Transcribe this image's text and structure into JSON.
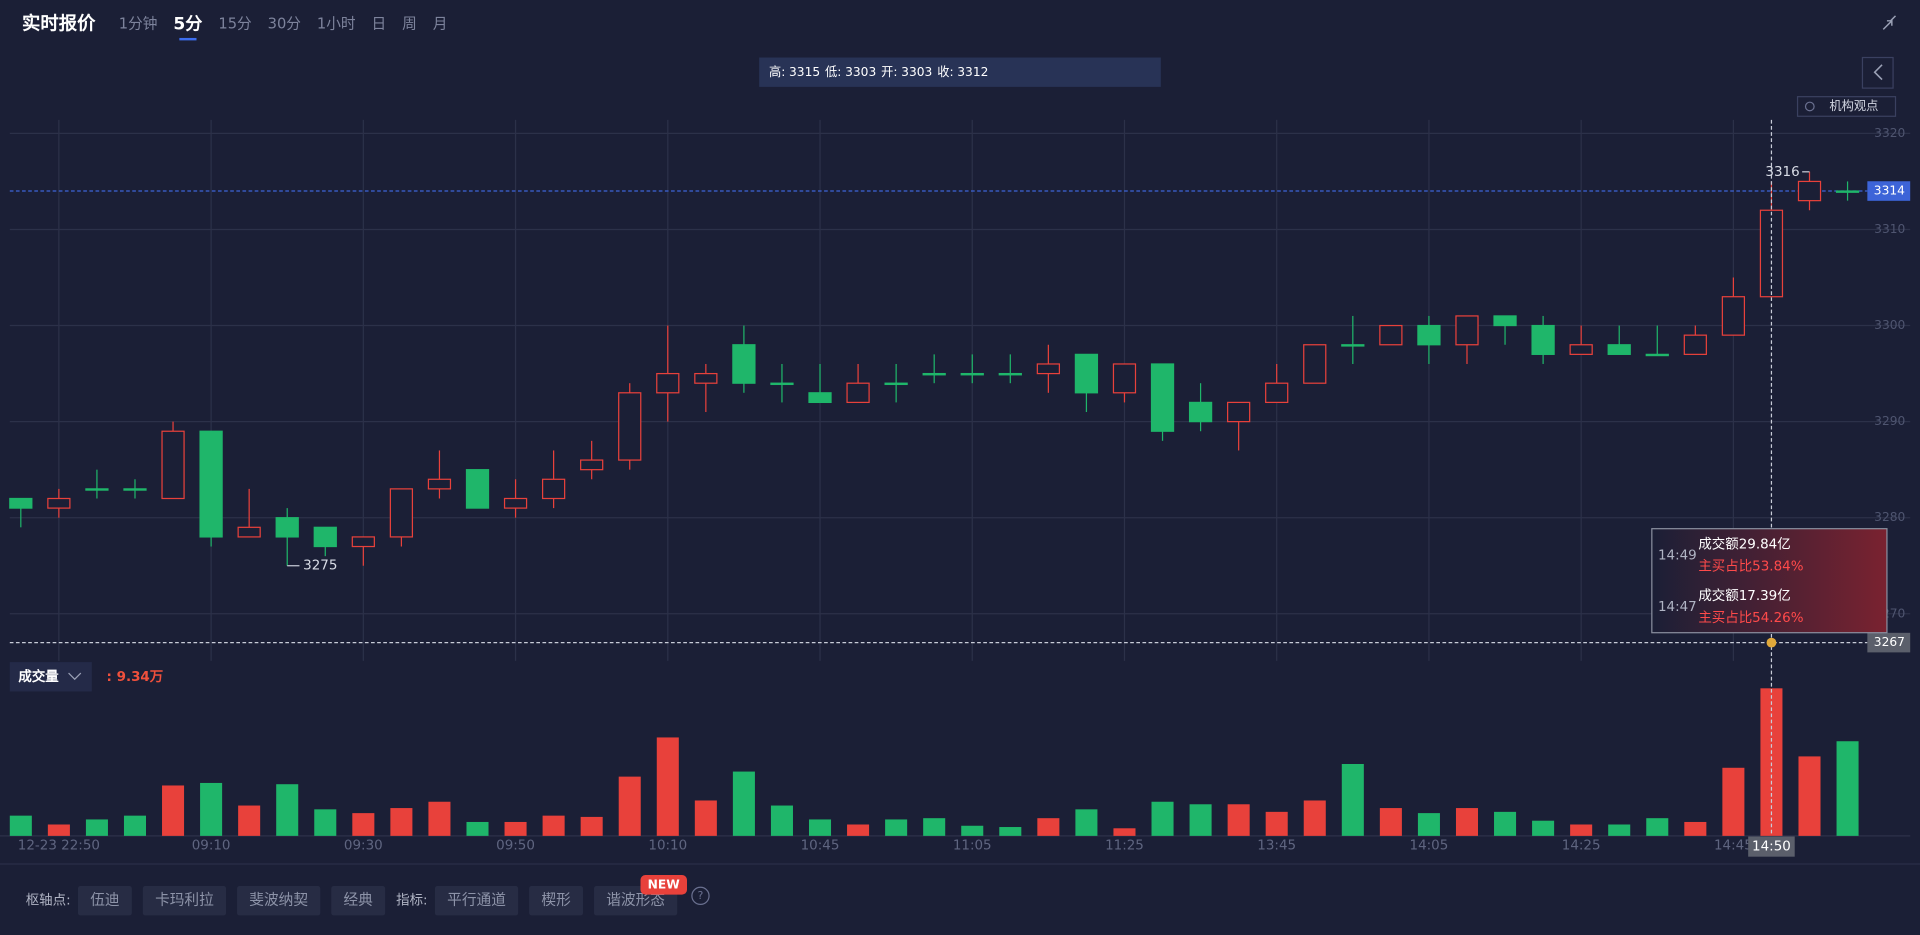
{
  "header": {
    "title": "实时报价",
    "periods": [
      "1分钟",
      "5分",
      "15分",
      "30分",
      "1小时",
      "日",
      "周",
      "月"
    ],
    "active_period": 1,
    "opinion_button": "机构观点"
  },
  "chart_data": {
    "type": "candlestick",
    "categories": [
      null,
      "12-23 22:50",
      null,
      null,
      null,
      "09:10",
      null,
      null,
      null,
      "09:30",
      null,
      null,
      null,
      "09:50",
      null,
      null,
      null,
      "10:10",
      null,
      null,
      null,
      "10:45",
      null,
      null,
      null,
      "11:05",
      null,
      null,
      null,
      "11:25",
      null,
      null,
      null,
      "13:45",
      null,
      null,
      null,
      "14:05",
      null,
      null,
      null,
      "14:25",
      null,
      null,
      null,
      "14:45",
      "14:50",
      null,
      null
    ],
    "open": [
      3282,
      3281,
      3283,
      3283,
      3282,
      3289,
      3278,
      3280,
      3279,
      3277,
      3278,
      3283,
      3285,
      3281,
      3282,
      3285,
      3286,
      3293,
      3294,
      3298,
      3294,
      3293,
      3292,
      3294,
      3295,
      3295,
      3295,
      3295,
      3297,
      3293,
      3296,
      3292,
      3290,
      3292,
      3294,
      3298,
      3298,
      3300,
      3298,
      3301,
      3300,
      3297,
      3298,
      3297,
      3297,
      3299,
      3303,
      3313,
      3314
    ],
    "high": [
      3282,
      3283,
      3285,
      3284,
      3290,
      3289,
      3283,
      3281,
      3279,
      3278,
      3283,
      3287,
      3285,
      3284,
      3287,
      3288,
      3294,
      3300,
      3296,
      3300,
      3296,
      3296,
      3296,
      3296,
      3297,
      3297,
      3297,
      3298,
      3297,
      3296,
      3296,
      3294,
      3292,
      3296,
      3298,
      3301,
      3300,
      3301,
      3301,
      3301,
      3301,
      3300,
      3300,
      3300,
      3300,
      3305,
      3315,
      3316,
      3315
    ],
    "low": [
      3279,
      3280,
      3282,
      3282,
      3282,
      3277,
      3278,
      3275,
      3276,
      3275,
      3277,
      3282,
      3281,
      3280,
      3281,
      3284,
      3285,
      3290,
      3291,
      3293,
      3292,
      3292,
      3292,
      3292,
      3294,
      3294,
      3294,
      3293,
      3291,
      3292,
      3288,
      3289,
      3287,
      3292,
      3294,
      3296,
      3298,
      3296,
      3296,
      3298,
      3296,
      3297,
      3297,
      3297,
      3297,
      3299,
      3303,
      3312,
      3313
    ],
    "close": [
      3281,
      3282,
      3283,
      3283,
      3289,
      3278,
      3279,
      3278,
      3277,
      3278,
      3283,
      3284,
      3281,
      3282,
      3284,
      3286,
      3293,
      3295,
      3295,
      3294,
      3294,
      3292,
      3294,
      3294,
      3295,
      3295,
      3295,
      3296,
      3293,
      3296,
      3289,
      3290,
      3292,
      3294,
      3298,
      3298,
      3300,
      3298,
      3301,
      3300,
      3297,
      3298,
      3297,
      3297,
      3299,
      3303,
      3312,
      3315,
      3314
    ],
    "ohlc_labels": [
      "高:",
      "低:",
      "开:",
      "收:"
    ],
    "up_color": "#e8413b",
    "down_color": "#1fb66a",
    "ylim": [
      3265.1,
      3321.4
    ],
    "yticks": [
      3320,
      3310,
      3300,
      3290,
      3280,
      3270
    ],
    "grid": true,
    "crosshair": {
      "y": 3267
    },
    "volume": {
      "name": "成交量",
      "label": ": 9.34万",
      "ylim": [
        0,
        11
      ],
      "values": [
        1.28,
        0.72,
        1.04,
        1.28,
        3.19,
        3.35,
        1.92,
        3.27,
        1.68,
        1.44,
        1.76,
        2.16,
        0.88,
        0.88,
        1.28,
        1.2,
        3.75,
        6.23,
        2.24,
        4.07,
        1.92,
        1.04,
        0.72,
        1.04,
        1.12,
        0.64,
        0.56,
        1.12,
        1.68,
        0.48,
        2.16,
        2.0,
        2.0,
        1.52,
        2.24,
        4.55,
        1.76,
        1.44,
        1.76,
        1.52,
        0.96,
        0.72,
        0.72,
        1.12,
        0.88,
        4.31,
        9.34,
        5.03,
        5.99
      ]
    },
    "flow_tips": [
      {
        "time": "14:49",
        "amount": "成交额29.84亿",
        "ratio": "主买占比53.84%"
      },
      {
        "time": "14:47",
        "amount": "成交额17.39亿",
        "ratio": "主买占比54.26%"
      }
    ]
  },
  "toolbar": {
    "pivot_label": "枢轴点:",
    "pivots": [
      "伍迪",
      "卡玛利拉",
      "斐波纳契",
      "经典"
    ],
    "indicator_label": "指标:",
    "indicators": [
      "平行通道",
      "楔形",
      "谐波形态"
    ],
    "badge": "NEW",
    "help": "?"
  }
}
